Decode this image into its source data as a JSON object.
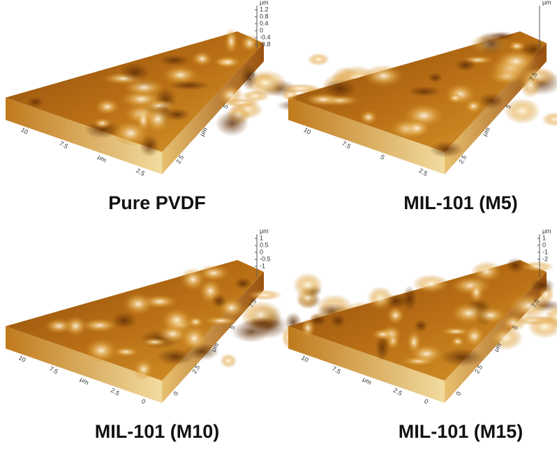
{
  "panels": [
    {
      "title": "Pure PVDF",
      "z_unit": "μm",
      "z_ticks": [
        "1.2",
        "0.8",
        "0.4",
        "0",
        "-0.4",
        "-0.8"
      ],
      "left_ticks": [
        "10",
        "7.5",
        "μm",
        "2.5"
      ],
      "right_ticks": [
        "7.5",
        "5",
        "μm",
        "2.5"
      ]
    },
    {
      "title": "MIL-101 (M5)",
      "z_unit": "μm",
      "z_ticks": [],
      "left_ticks": [
        "10",
        "7.5",
        "5",
        "2.5"
      ],
      "right_ticks": [
        "7.5",
        "5",
        "μm",
        "2.5"
      ]
    },
    {
      "title": "MIL-101 (M10)",
      "z_unit": "μm",
      "z_ticks": [
        "1",
        "0.5",
        "0",
        "-0.5",
        "-1"
      ],
      "left_ticks": [
        "10",
        "7.5",
        "μm",
        "2.5",
        "0"
      ],
      "right_ticks": [
        "7.5",
        "5",
        "μm",
        "2.5",
        "0"
      ]
    },
    {
      "title": "MIL-101 (M15)",
      "z_unit": "μm",
      "z_ticks": [
        "1",
        "0",
        "-1",
        "-2"
      ],
      "left_ticks": [
        "10",
        "7.5",
        "μm",
        "2.5",
        "0"
      ],
      "right_ticks": [
        "7.5",
        "5",
        "μm",
        "2.5",
        "0"
      ]
    }
  ]
}
